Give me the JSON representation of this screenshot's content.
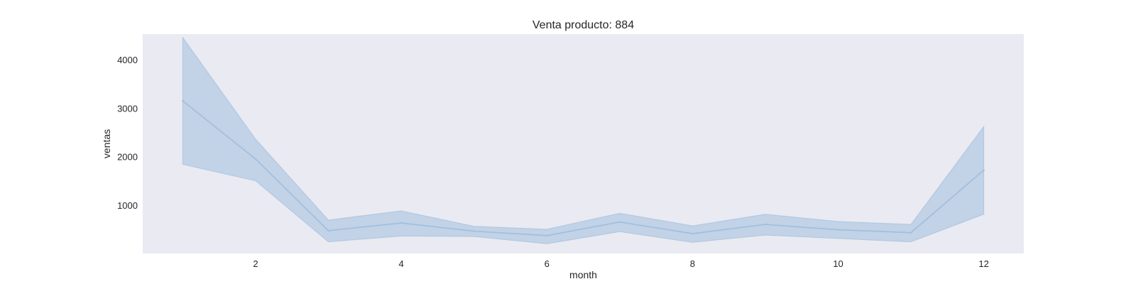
{
  "chart_data": {
    "type": "line",
    "title": "Venta producto: 884",
    "xlabel": "month",
    "ylabel": "ventas",
    "xlim": [
      0.45,
      12.55
    ],
    "ylim": [
      0,
      4530
    ],
    "xticks": [
      2,
      4,
      6,
      8,
      10,
      12
    ],
    "yticks": [
      1000,
      2000,
      3000,
      4000
    ],
    "grid": false,
    "background": "#eaeaf2",
    "line_color": "#9ebfdc",
    "band_color": "#a6c2e0",
    "series": [
      {
        "x": [
          1,
          2,
          3,
          4,
          5,
          6,
          7,
          8,
          9,
          10,
          11,
          12
        ],
        "values": [
          3150,
          1950,
          470,
          630,
          460,
          370,
          650,
          410,
          600,
          490,
          430,
          1720
        ],
        "ci_low": [
          1840,
          1500,
          240,
          360,
          350,
          200,
          450,
          230,
          380,
          310,
          240,
          810
        ],
        "ci_high": [
          4460,
          2360,
          690,
          880,
          560,
          500,
          830,
          570,
          810,
          660,
          600,
          2620
        ]
      }
    ]
  }
}
